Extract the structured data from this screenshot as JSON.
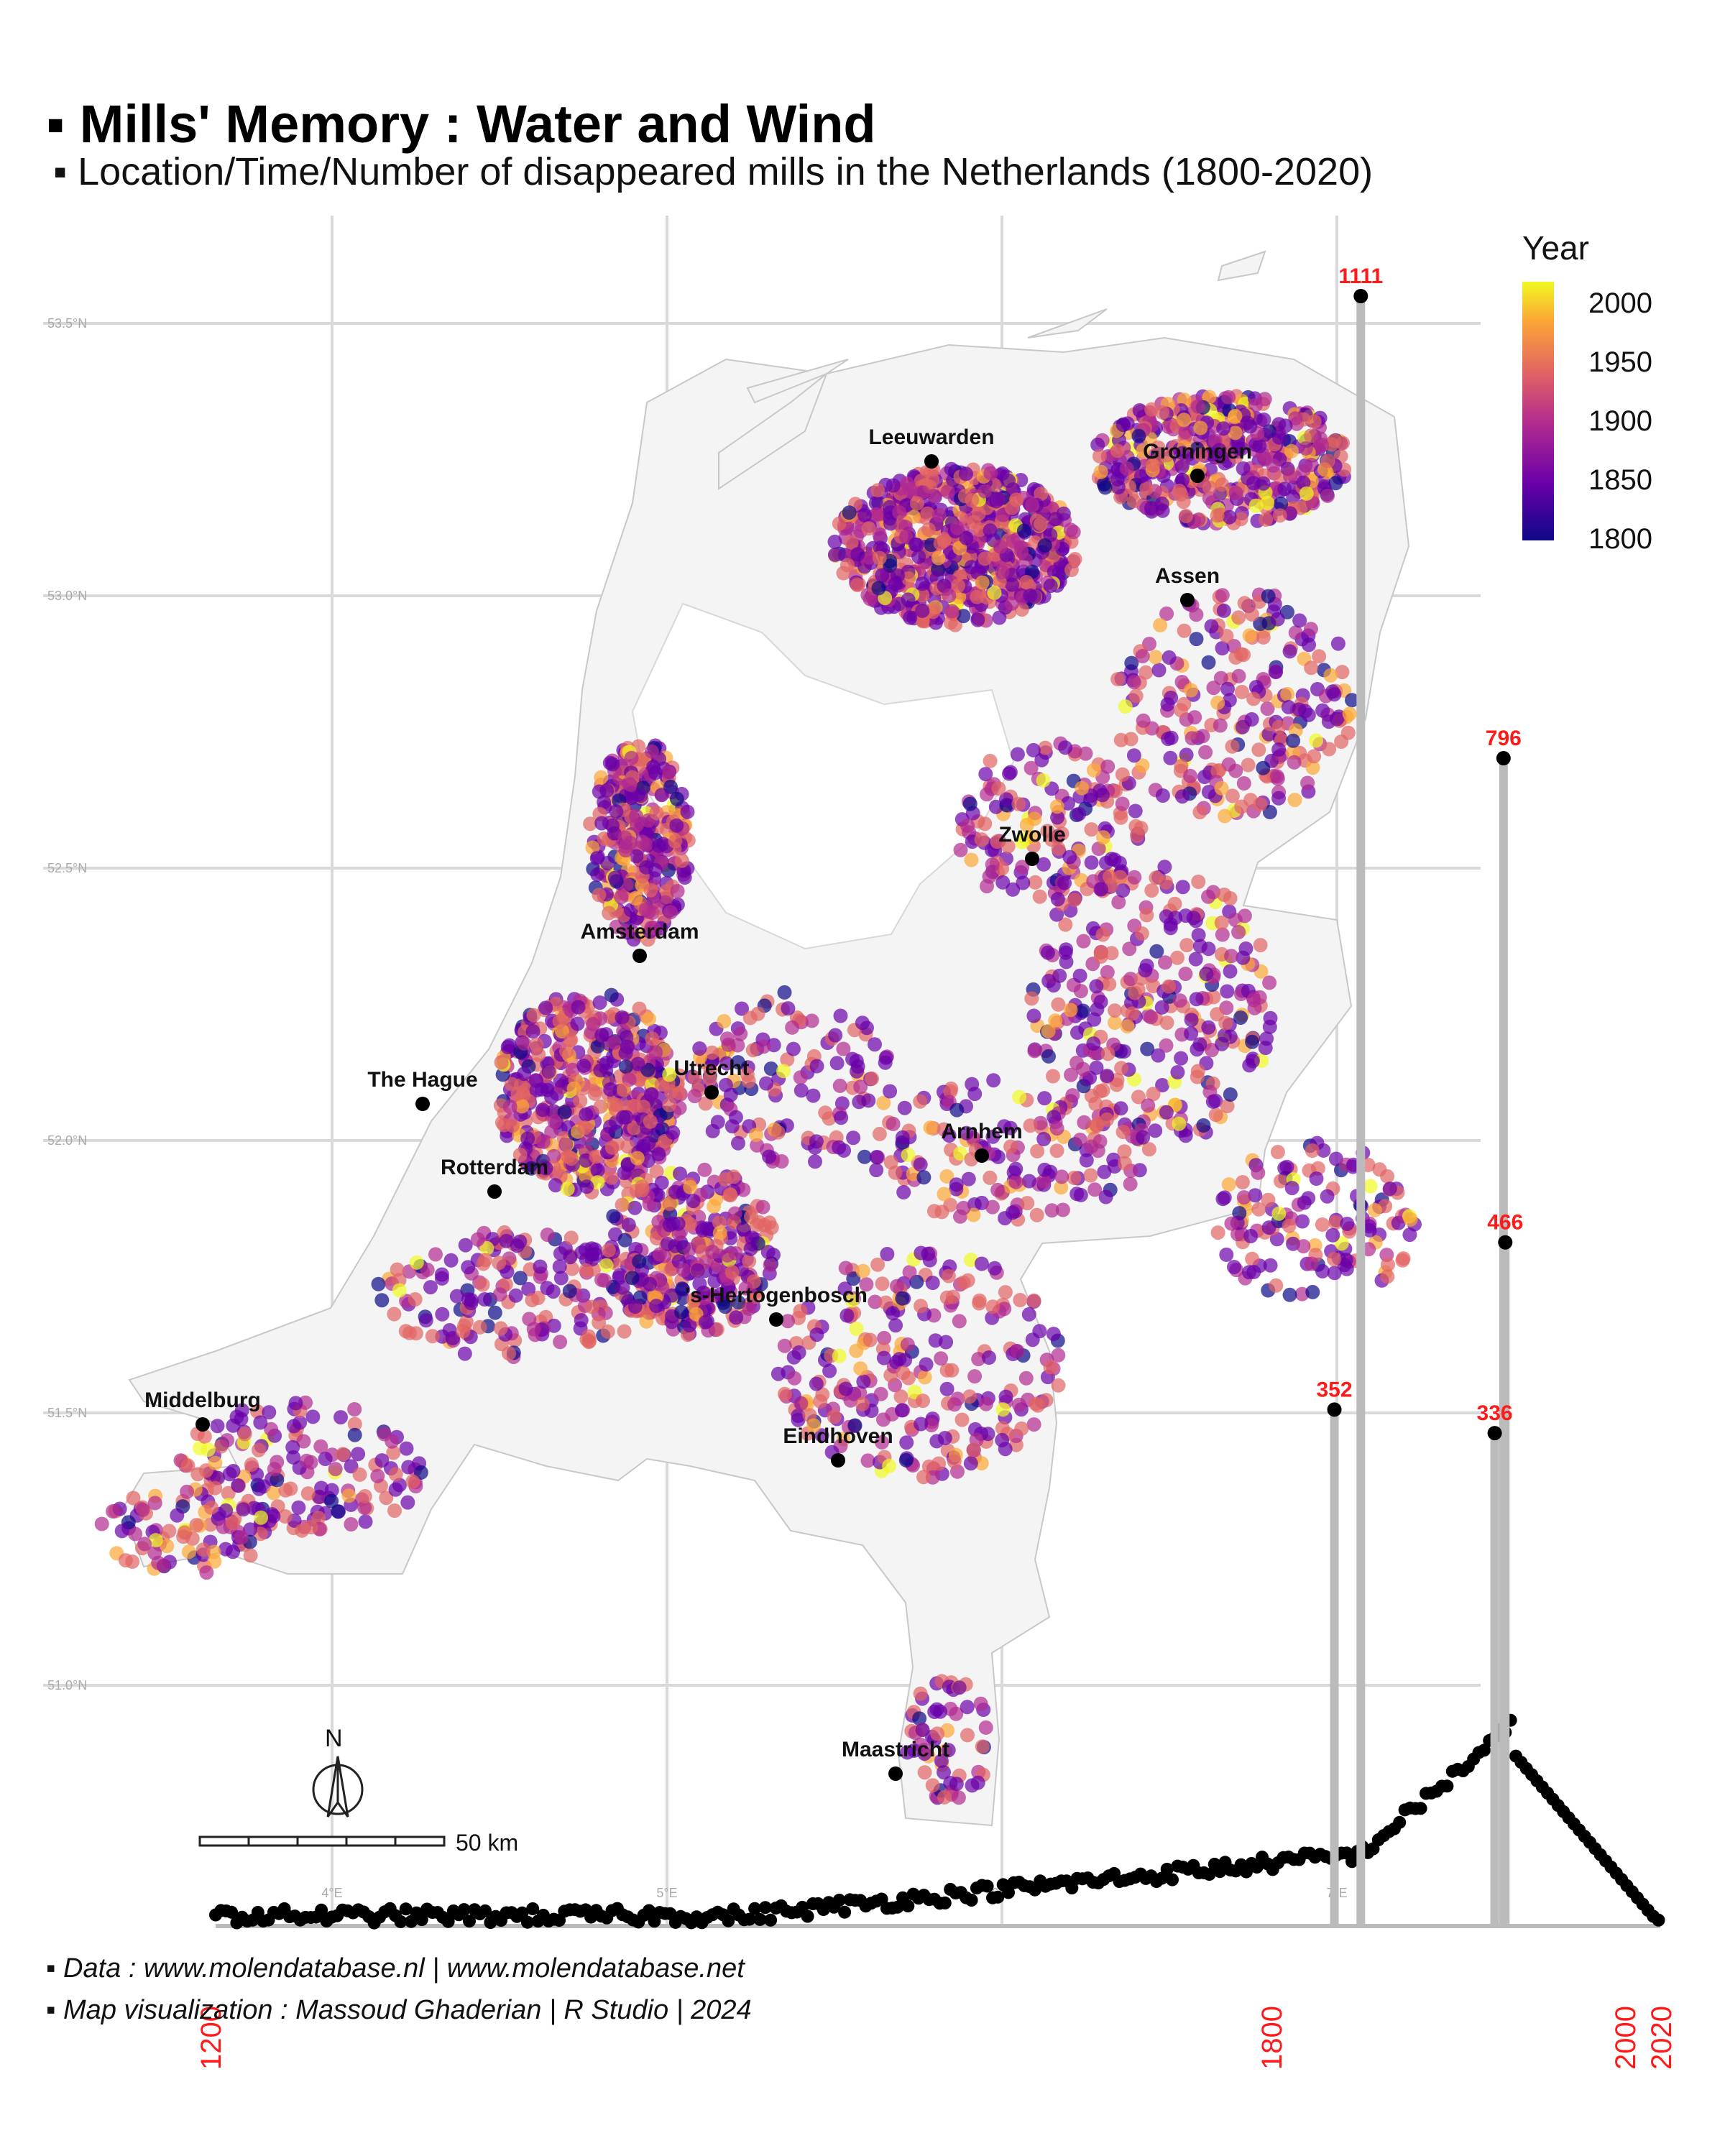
{
  "header": {
    "title": "▪ Mills' Memory : Water and Wind",
    "subtitle": "▪ Location/Time/Number of disappeared mills in the Netherlands (1800-2020)"
  },
  "legend": {
    "title": "Year",
    "ticks": [
      "2000",
      "1950",
      "1900",
      "1850",
      "1800"
    ],
    "palette": [
      "#0d0887",
      "#6a00a8",
      "#b12a90",
      "#e16462",
      "#fca636",
      "#f0f921"
    ]
  },
  "map": {
    "lat_labels": [
      "53.5°N",
      "53.0°N",
      "52.5°N",
      "52.0°N",
      "51.5°N",
      "51.0°N"
    ],
    "lon_labels": [
      "4°E",
      "5°E",
      "6°E",
      "7°E"
    ],
    "cities": [
      {
        "name": "Leeuwarden"
      },
      {
        "name": "Groningen"
      },
      {
        "name": "Assen"
      },
      {
        "name": "Zwolle"
      },
      {
        "name": "Amsterdam"
      },
      {
        "name": "Utrecht"
      },
      {
        "name": "The Hague"
      },
      {
        "name": "Arnhem"
      },
      {
        "name": "Rotterdam"
      },
      {
        "name": "'s-Hertogenbosch"
      },
      {
        "name": "Middelburg"
      },
      {
        "name": "Eindhoven"
      },
      {
        "name": "Maastricht"
      }
    ],
    "north_label": "N",
    "scale_label": "50 km"
  },
  "timeline": {
    "year_labels": [
      "1200",
      "1800",
      "2000",
      "2020"
    ],
    "peaks": [
      {
        "year": 1850,
        "count": 1111
      },
      {
        "year": 1931,
        "count": 796
      },
      {
        "year": 1932,
        "count": 466
      },
      {
        "year": 1835,
        "count": 352
      },
      {
        "year": 1926,
        "count": 336
      }
    ]
  },
  "credits": {
    "line1": "▪ Data : www.molendatabase.nl  |  www.molendatabase.net",
    "line2": "▪ Map visualization : Massoud Ghaderian | R Studio | 2024"
  }
}
